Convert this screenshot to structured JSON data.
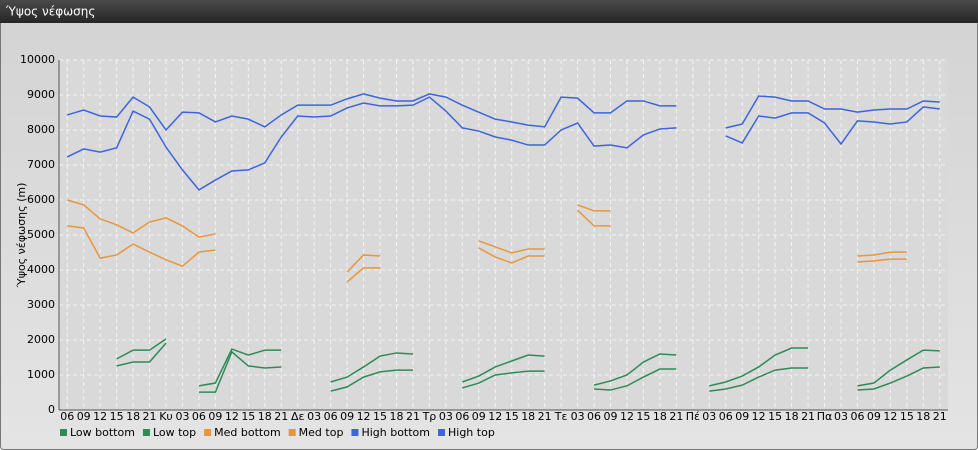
{
  "chart_data": {
    "type": "line",
    "title": "Ύψος νέφωσης",
    "y_label": "Ύψος νέφωσης (m)",
    "categories": [
      "06",
      "09",
      "12",
      "15",
      "18",
      "21",
      "Κυ",
      "03",
      "06",
      "09",
      "12",
      "15",
      "18",
      "21",
      "Δε",
      "03",
      "06",
      "09",
      "12",
      "15",
      "18",
      "21",
      "Τρ",
      "03",
      "06",
      "09",
      "12",
      "15",
      "18",
      "21",
      "Τε",
      "03",
      "06",
      "09",
      "12",
      "15",
      "18",
      "21",
      "Πέ",
      "03",
      "06",
      "09",
      "12",
      "15",
      "18",
      "21",
      "Πα",
      "03",
      "06",
      "09",
      "12",
      "15",
      "18",
      "21"
    ],
    "ylim": [
      0,
      10000
    ],
    "yticks": [
      0,
      1000,
      2000,
      3000,
      4000,
      5000,
      6000,
      7000,
      8000,
      9000,
      10000
    ],
    "grid": true,
    "series": [
      {
        "name": "Low bottom",
        "color": "#2e8b57",
        "values": [
          null,
          null,
          null,
          1260,
          1370,
          1370,
          1910,
          null,
          510,
          510,
          1660,
          1260,
          1200,
          1230,
          null,
          null,
          540,
          660,
          940,
          1090,
          1140,
          1140,
          null,
          null,
          630,
          770,
          1000,
          1060,
          1110,
          1110,
          null,
          null,
          600,
          570,
          690,
          940,
          1170,
          1170,
          null,
          540,
          600,
          710,
          940,
          1140,
          1200,
          1200,
          null,
          null,
          570,
          600,
          770,
          970,
          1200,
          1230
        ]
      },
      {
        "name": "Low top",
        "color": "#2e8b57",
        "values": [
          null,
          null,
          null,
          1460,
          1710,
          1710,
          2030,
          null,
          690,
          770,
          1740,
          1570,
          1710,
          1710,
          null,
          null,
          800,
          940,
          1230,
          1540,
          1630,
          1600,
          null,
          null,
          800,
          970,
          1230,
          1400,
          1570,
          1540,
          null,
          null,
          710,
          830,
          1000,
          1370,
          1600,
          1570,
          null,
          690,
          800,
          970,
          1230,
          1570,
          1770,
          1770,
          null,
          null,
          690,
          770,
          1140,
          1430,
          1710,
          1690
        ]
      },
      {
        "name": "Med bottom",
        "color": "#e8963c",
        "values": [
          5260,
          5200,
          4340,
          4430,
          4740,
          4510,
          4290,
          4110,
          4510,
          4570,
          null,
          null,
          null,
          null,
          null,
          null,
          null,
          3660,
          4060,
          4060,
          null,
          null,
          null,
          null,
          null,
          4630,
          4370,
          4200,
          4400,
          4400,
          null,
          5710,
          5260,
          5260,
          null,
          null,
          null,
          null,
          null,
          null,
          null,
          null,
          null,
          null,
          null,
          null,
          null,
          null,
          4230,
          4260,
          4310,
          4310,
          null,
          null
        ]
      },
      {
        "name": "Med top",
        "color": "#e8963c",
        "values": [
          6000,
          5860,
          5460,
          5290,
          5060,
          5370,
          5490,
          5260,
          4940,
          5030,
          null,
          null,
          null,
          null,
          null,
          null,
          null,
          3940,
          4430,
          4400,
          null,
          null,
          null,
          null,
          null,
          4830,
          4660,
          4490,
          4600,
          4600,
          null,
          5860,
          5690,
          5690,
          null,
          null,
          null,
          null,
          null,
          null,
          null,
          null,
          null,
          null,
          null,
          null,
          null,
          null,
          4400,
          4430,
          4510,
          4510,
          null,
          null
        ]
      },
      {
        "name": "High bottom",
        "color": "#3c64dc",
        "values": [
          7230,
          7460,
          7370,
          7490,
          8540,
          8310,
          7510,
          6860,
          6290,
          6570,
          6830,
          6860,
          7060,
          7800,
          8400,
          8370,
          8400,
          8630,
          8770,
          8690,
          8690,
          8710,
          8940,
          8540,
          8060,
          7970,
          7800,
          7710,
          7570,
          7570,
          8000,
          8200,
          7540,
          7570,
          7490,
          7860,
          8030,
          8060,
          null,
          null,
          7830,
          7630,
          8400,
          8340,
          8490,
          8490,
          8200,
          7600,
          8260,
          8230,
          8170,
          8230,
          8660,
          8600
        ]
      },
      {
        "name": "High top",
        "color": "#3c64dc",
        "values": [
          8430,
          8570,
          8400,
          8370,
          8940,
          8660,
          8000,
          8510,
          8490,
          8230,
          8400,
          8310,
          8090,
          8430,
          8710,
          8710,
          8710,
          8890,
          9030,
          8910,
          8830,
          8830,
          9030,
          8940,
          8710,
          8510,
          8310,
          8230,
          8140,
          8090,
          8940,
          8910,
          8490,
          8490,
          8830,
          8830,
          8690,
          8690,
          null,
          null,
          8060,
          8170,
          8970,
          8940,
          8830,
          8830,
          8600,
          8600,
          8510,
          8570,
          8600,
          8600,
          8830,
          8800
        ]
      }
    ]
  }
}
